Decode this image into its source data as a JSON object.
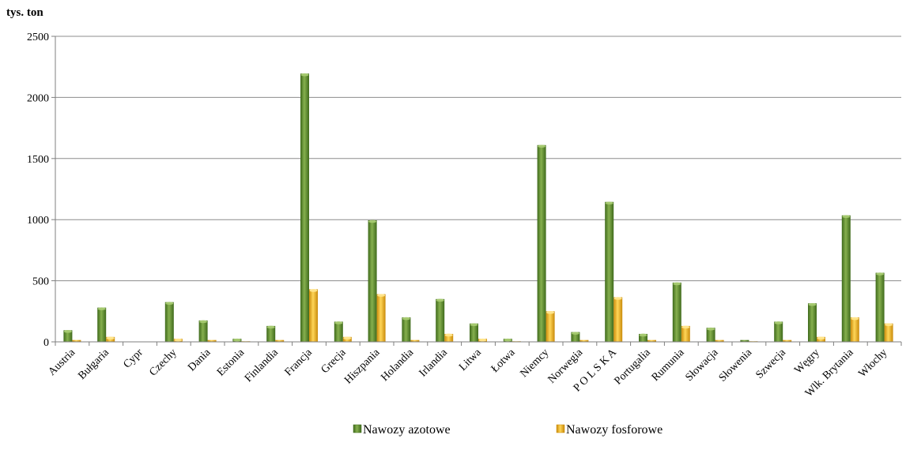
{
  "chart_data": {
    "type": "bar",
    "unit_label": "tys. ton",
    "categories": [
      "Austria",
      "Bułgaria",
      "Cypr",
      "Czechy",
      "Dania",
      "Estonia",
      "Finlandia",
      "Francja",
      "Grecja",
      "Hiszpania",
      "Holandia",
      "Irlandia",
      "Litwa",
      "Łotwa",
      "Niemcy",
      "Norwegia",
      "P O L S K A",
      "Portugalia",
      "Rumunia",
      "Słowacja",
      "Słowenia",
      "Szwecja",
      "Węgry",
      "Wlk. Brytania",
      "Włochy"
    ],
    "series": [
      {
        "name": "Nawozy azotowe",
        "color": "#5e8a2e",
        "values": [
          95,
          280,
          0,
          325,
          175,
          25,
          130,
          2195,
          165,
          995,
          200,
          350,
          150,
          25,
          1610,
          80,
          1145,
          65,
          485,
          115,
          15,
          165,
          315,
          1035,
          565
        ]
      },
      {
        "name": "Nawozy fosforowe",
        "color": "#e8b020",
        "values": [
          15,
          40,
          0,
          25,
          15,
          5,
          15,
          430,
          40,
          390,
          15,
          65,
          25,
          5,
          250,
          15,
          365,
          15,
          130,
          15,
          5,
          15,
          40,
          200,
          150
        ]
      }
    ],
    "ylim": [
      0,
      2500
    ],
    "yticks": [
      0,
      500,
      1000,
      1500,
      2000,
      2500
    ],
    "grid": true,
    "legend_position": "bottom"
  }
}
